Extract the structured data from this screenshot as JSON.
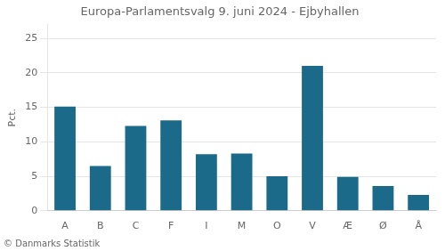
{
  "chart_data": {
    "type": "bar",
    "title": "Europa-Parlamentsvalg 9. juni 2024 - Ejbyhallen",
    "ylabel": "Pct.",
    "annotations": [
      "© Danmarks Statistik"
    ],
    "categories": [
      "A",
      "B",
      "C",
      "F",
      "I",
      "M",
      "O",
      "V",
      "Æ",
      "Ø",
      "Å"
    ],
    "values": [
      15.1,
      6.5,
      12.3,
      13.1,
      8.2,
      8.3,
      5.0,
      21.0,
      4.9,
      3.6,
      2.3
    ],
    "color": "#1b6a8a",
    "ylim": [
      0,
      27
    ],
    "yticks": [
      0,
      5,
      10,
      15,
      20,
      25
    ],
    "grid": true
  }
}
